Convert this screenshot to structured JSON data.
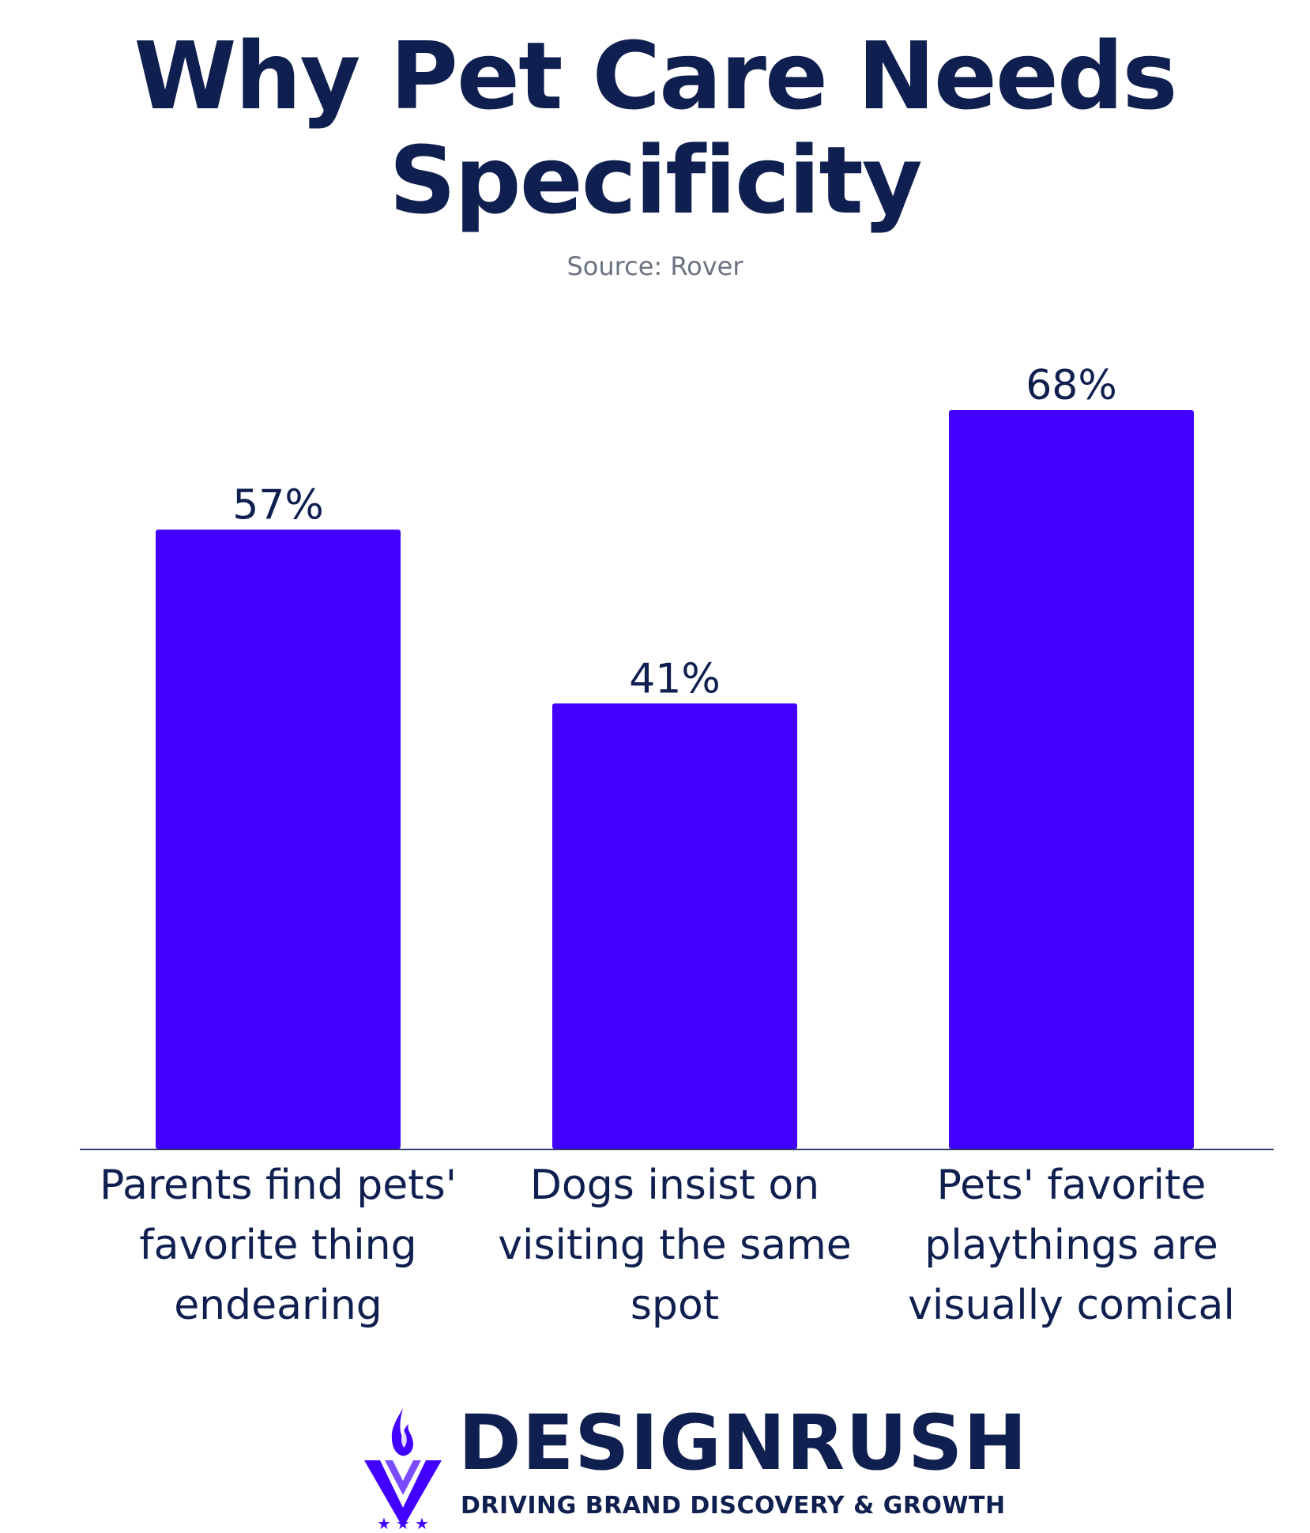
{
  "header": {
    "title_line1": "Why Pet Care Needs",
    "title_line2": "Specificity",
    "source": "Source: Rover"
  },
  "chart_data": {
    "type": "bar",
    "title": "Why Pet Care Needs Specificity",
    "subtitle": "Source: Rover",
    "categories": [
      "Parents find pets' favorite thing endearing",
      "Dogs insist on visiting the same spot",
      "Pets' favorite playthings are visually comical"
    ],
    "category_lines": [
      [
        "Parents find pets'",
        "favorite thing",
        "endearing"
      ],
      [
        "Dogs insist on",
        "visiting the same",
        "spot"
      ],
      [
        "Pets' favorite",
        "playthings are",
        "visually comical"
      ]
    ],
    "values": [
      57,
      41,
      68
    ],
    "value_labels": [
      "57%",
      "41%",
      "68%"
    ],
    "ylim": [
      0,
      100
    ],
    "grid": false,
    "bar_color": "#4100ff",
    "axis_color": "#0f1f4f"
  },
  "brand": {
    "name": "DESIGNRUSH",
    "tagline": "DRIVING BRAND DISCOVERY & GROWTH",
    "mark_color": "#4100ff",
    "text_color": "#0f1f4f"
  }
}
